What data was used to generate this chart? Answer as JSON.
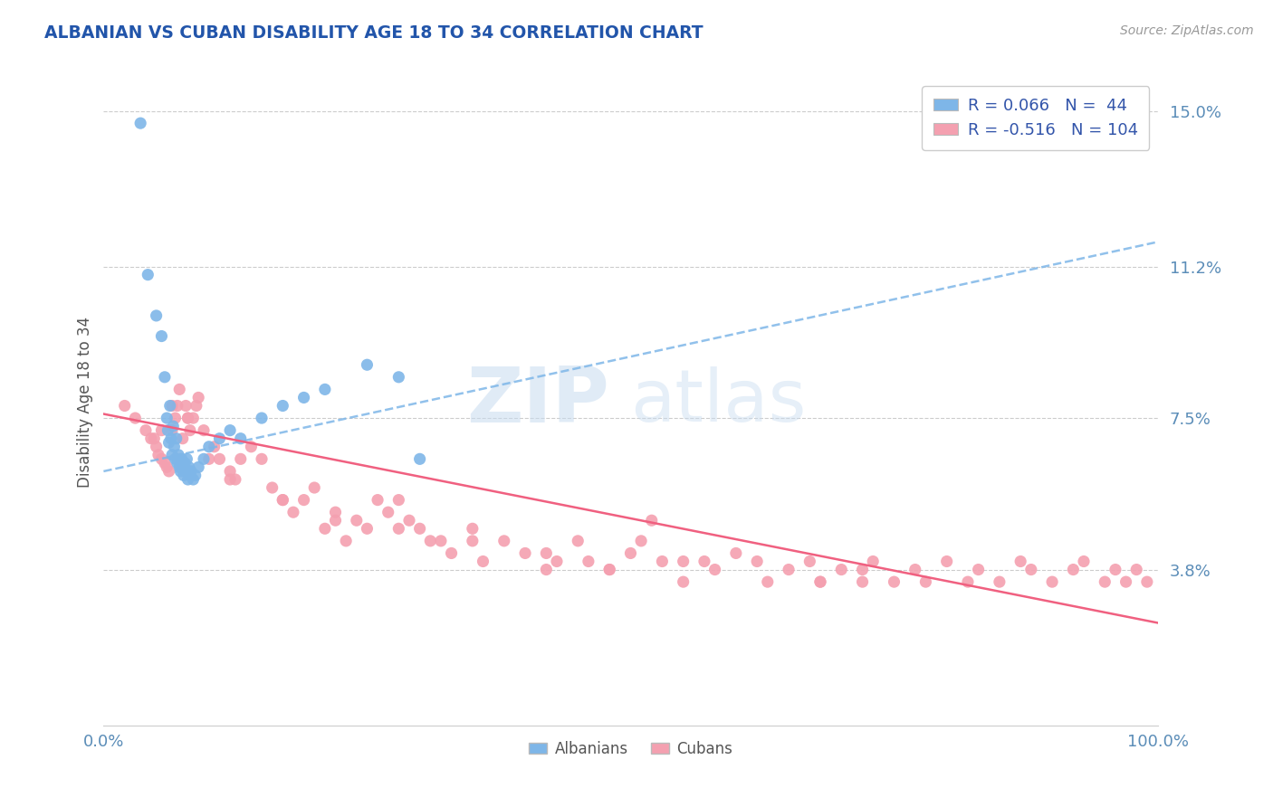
{
  "title": "ALBANIAN VS CUBAN DISABILITY AGE 18 TO 34 CORRELATION CHART",
  "source_text": "Source: ZipAtlas.com",
  "ylabel": "Disability Age 18 to 34",
  "xlim": [
    0.0,
    100.0
  ],
  "ylim": [
    0.0,
    15.8
  ],
  "yticks": [
    3.8,
    7.5,
    11.2,
    15.0
  ],
  "ytick_labels": [
    "3.8%",
    "7.5%",
    "11.2%",
    "15.0%"
  ],
  "xtick_labels": [
    "0.0%",
    "100.0%"
  ],
  "legend_r_albanian": "R = 0.066",
  "legend_n_albanian": "N =  44",
  "legend_r_cuban": "R = -0.516",
  "legend_n_cuban": "N = 104",
  "albanian_color": "#7EB6E8",
  "cuban_color": "#F4A0B0",
  "trendline_albanian_color": "#7EB6E8",
  "trendline_cuban_color": "#F06080",
  "watermark_zip": "ZIP",
  "watermark_atlas": "atlas",
  "trendline_alb_x0": 0.0,
  "trendline_alb_y0": 6.2,
  "trendline_alb_x1": 100.0,
  "trendline_alb_y1": 11.8,
  "trendline_cub_x0": 0.0,
  "trendline_cub_y0": 7.6,
  "trendline_cub_x1": 100.0,
  "trendline_cub_y1": 2.5,
  "albanian_x": [
    3.5,
    4.2,
    5.0,
    5.5,
    5.8,
    6.0,
    6.1,
    6.2,
    6.3,
    6.4,
    6.5,
    6.6,
    6.7,
    6.8,
    6.9,
    7.0,
    7.1,
    7.2,
    7.3,
    7.4,
    7.5,
    7.6,
    7.7,
    7.8,
    7.9,
    8.0,
    8.1,
    8.2,
    8.3,
    8.5,
    8.7,
    9.0,
    9.5,
    10.0,
    11.0,
    12.0,
    13.0,
    15.0,
    17.0,
    19.0,
    21.0,
    25.0,
    28.0,
    30.0
  ],
  "albanian_y": [
    14.7,
    11.0,
    10.0,
    9.5,
    8.5,
    7.5,
    7.2,
    6.9,
    7.8,
    7.0,
    6.6,
    7.3,
    6.8,
    6.5,
    7.0,
    6.4,
    6.6,
    6.3,
    6.2,
    6.5,
    6.3,
    6.1,
    6.4,
    6.2,
    6.5,
    6.0,
    6.3,
    6.1,
    6.2,
    6.0,
    6.1,
    6.3,
    6.5,
    6.8,
    7.0,
    7.2,
    7.0,
    7.5,
    7.8,
    8.0,
    8.2,
    8.8,
    8.5,
    6.5
  ],
  "cuban_x": [
    2.0,
    3.0,
    4.0,
    4.5,
    5.0,
    5.2,
    5.5,
    5.8,
    6.0,
    6.2,
    6.5,
    6.8,
    7.0,
    7.2,
    7.5,
    7.8,
    8.0,
    8.2,
    8.5,
    8.8,
    9.0,
    9.5,
    10.0,
    10.5,
    11.0,
    12.0,
    12.5,
    13.0,
    14.0,
    15.0,
    16.0,
    17.0,
    18.0,
    19.0,
    20.0,
    21.0,
    22.0,
    23.0,
    24.0,
    25.0,
    26.0,
    27.0,
    28.0,
    29.0,
    30.0,
    31.0,
    32.0,
    33.0,
    35.0,
    36.0,
    38.0,
    40.0,
    42.0,
    43.0,
    45.0,
    46.0,
    48.0,
    50.0,
    51.0,
    52.0,
    53.0,
    55.0,
    57.0,
    58.0,
    60.0,
    62.0,
    63.0,
    65.0,
    67.0,
    68.0,
    70.0,
    72.0,
    73.0,
    75.0,
    77.0,
    78.0,
    80.0,
    82.0,
    83.0,
    85.0,
    87.0,
    88.0,
    90.0,
    92.0,
    93.0,
    95.0,
    96.0,
    97.0,
    98.0,
    99.0,
    72.0,
    68.0,
    55.0,
    48.0,
    42.0,
    35.0,
    28.0,
    22.0,
    17.0,
    12.0,
    8.0,
    6.5,
    5.5,
    4.8
  ],
  "cuban_y": [
    7.8,
    7.5,
    7.2,
    7.0,
    6.8,
    6.6,
    6.5,
    6.4,
    6.3,
    6.2,
    7.2,
    7.5,
    7.8,
    8.2,
    7.0,
    7.8,
    7.5,
    7.2,
    7.5,
    7.8,
    8.0,
    7.2,
    6.5,
    6.8,
    6.5,
    6.2,
    6.0,
    6.5,
    6.8,
    6.5,
    5.8,
    5.5,
    5.2,
    5.5,
    5.8,
    4.8,
    5.2,
    4.5,
    5.0,
    4.8,
    5.5,
    5.2,
    5.5,
    5.0,
    4.8,
    4.5,
    4.5,
    4.2,
    4.8,
    4.0,
    4.5,
    4.2,
    3.8,
    4.0,
    4.5,
    4.0,
    3.8,
    4.2,
    4.5,
    5.0,
    4.0,
    3.5,
    4.0,
    3.8,
    4.2,
    4.0,
    3.5,
    3.8,
    4.0,
    3.5,
    3.8,
    3.5,
    4.0,
    3.5,
    3.8,
    3.5,
    4.0,
    3.5,
    3.8,
    3.5,
    4.0,
    3.8,
    3.5,
    3.8,
    4.0,
    3.5,
    3.8,
    3.5,
    3.8,
    3.5,
    3.8,
    3.5,
    4.0,
    3.8,
    4.2,
    4.5,
    4.8,
    5.0,
    5.5,
    6.0,
    7.5,
    7.8,
    7.2,
    7.0
  ]
}
